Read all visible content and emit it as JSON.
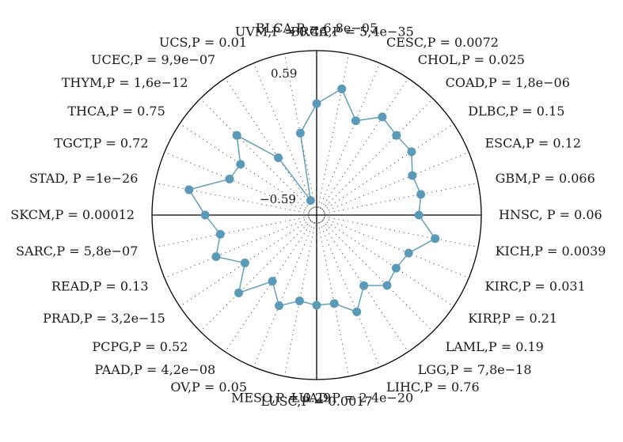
{
  "chart_data": {
    "type": "radar",
    "rlim": [
      -0.59,
      0.59
    ],
    "tick_labels": [
      "0.59",
      "−0.59"
    ],
    "grid": true,
    "line_color": "#5a9ab8",
    "point_color": "#5a9ab8",
    "axis_color": "#000000",
    "grid_color": "#333333",
    "points": [
      {
        "category": "BLCA",
        "label": "BLCA,P = 6,8e−05",
        "value": 0.19
      },
      {
        "category": "BRCA",
        "label": "BRCA,P = 5,4e−35",
        "value": 0.32
      },
      {
        "category": "CESC",
        "label": "CESC,P = 0.0072",
        "value": 0.12
      },
      {
        "category": "CHOL",
        "label": "CHOL,P = 0.025",
        "value": 0.24
      },
      {
        "category": "COAD",
        "label": "COAD,P = 1,8e−06",
        "value": 0.2
      },
      {
        "category": "DLBC",
        "label": "DLBC,P = 0.15",
        "value": 0.21
      },
      {
        "category": "ESCA",
        "label": "ESCA,P = 0.12",
        "value": 0.13
      },
      {
        "category": "GBM",
        "label": "GBM,P = 0.066",
        "value": 0.15
      },
      {
        "category": "HNSC",
        "label": "HNSC, P = 0.06",
        "value": 0.12
      },
      {
        "category": "KICH",
        "label": "KICH,P = 0.0039",
        "value": 0.26
      },
      {
        "category": "KIRC",
        "label": "KIRC,P = 0.031",
        "value": 0.1
      },
      {
        "category": "KIRP",
        "label": "KIRP,P = 0.21",
        "value": 0.07
      },
      {
        "category": "LAML",
        "label": "LAML,P = 0.19",
        "value": 0.1
      },
      {
        "category": "LGG",
        "label": "LGG,P = 7,8e−18",
        "value": -0.01
      },
      {
        "category": "LIHC",
        "label": "LIHC,P = 0.76",
        "value": 0.14
      },
      {
        "category": "LUAD",
        "label": "LUAD,P = 2,4e−20",
        "value": 0.03
      },
      {
        "category": "LUSC",
        "label": "LUSC,P = 0.0017",
        "value": 0.03
      },
      {
        "category": "MESO",
        "label": "MESO,P = 0.29",
        "value": 0.01
      },
      {
        "category": "OV",
        "label": "OV,P = 0.05",
        "value": 0.09
      },
      {
        "category": "PAAD",
        "label": "PAAD,P = 4,2e−08",
        "value": -0.05
      },
      {
        "category": "PCPG",
        "label": "PCPG,P = 0.52",
        "value": 0.18
      },
      {
        "category": "PRAD",
        "label": "PRAD,P = 3,2e−15",
        "value": 0.0
      },
      {
        "category": "READ",
        "label": "READ,P = 0.13",
        "value": 0.17
      },
      {
        "category": "SARC",
        "label": "SARC,P = 5,8e−07",
        "value": 0.09
      },
      {
        "category": "SKCM",
        "label": "SKCM,P = 0.00012",
        "value": 0.19
      },
      {
        "category": "STAD",
        "label": "STAD, P =1e−26",
        "value": 0.33
      },
      {
        "category": "TGCT",
        "label": "TGCT,P = 0.72",
        "value": 0.06
      },
      {
        "category": "THCA",
        "label": "THCA,P = 0.75",
        "value": 0.04
      },
      {
        "category": "THYM",
        "label": "THYM,P = 1,6e−12",
        "value": 0.2
      },
      {
        "category": "UCEC",
        "label": "UCEC,P = 9,9e−07",
        "value": -0.13
      },
      {
        "category": "UCS",
        "label": "UCS,P = 0.01",
        "value": -0.53
      },
      {
        "category": "UVM",
        "label": "UVM,P = 0.46",
        "value": -0.02
      }
    ]
  }
}
